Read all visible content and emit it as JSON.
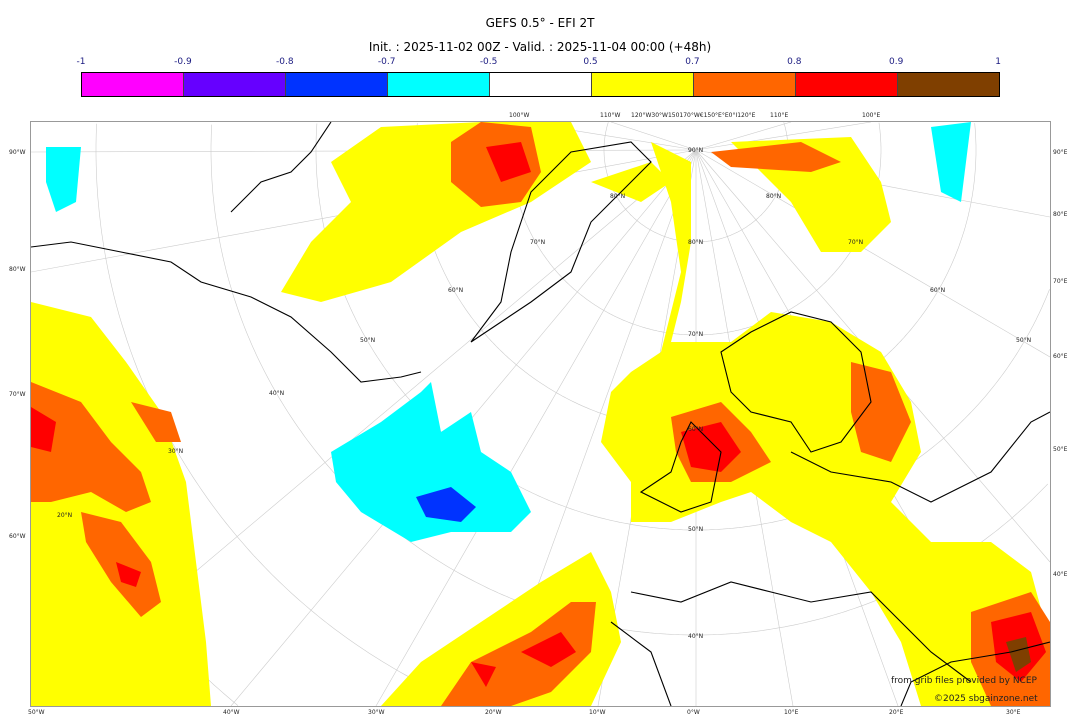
{
  "header": {
    "title": "GEFS 0.5° - EFI 2T",
    "subtitle": "Init. : 2025-11-02 00Z - Valid. : 2025-11-04 00:00 (+48h)"
  },
  "colorbar": {
    "ticks": [
      "-1",
      "-0.9",
      "-0.8",
      "-0.7",
      "-0.5",
      "0.5",
      "0.7",
      "0.8",
      "0.9",
      "1"
    ],
    "colors": [
      "#ff00ff",
      "#6600ff",
      "#0033ff",
      "#00ffff",
      "#ffffff",
      "#ffff00",
      "#ff6600",
      "#ff0000",
      "#7f3f00"
    ]
  },
  "map": {
    "left_labels": [
      "90°W",
      "80°W",
      "70°W",
      "60°W"
    ],
    "right_labels": [
      "90°E",
      "80°E",
      "70°E",
      "60°E",
      "50°E",
      "40°E"
    ],
    "bottom_labels": [
      "50°W",
      "40°W",
      "30°W",
      "20°W",
      "10°W",
      "0°W",
      "10°E",
      "20°E",
      "30°E"
    ],
    "top_labels": [
      "100°W",
      "110°W",
      "120°W30°W150170°W€150°E°E0°I120°E",
      "110°E",
      "100°E"
    ],
    "lat_labels_center": [
      "90°N",
      "80°N",
      "70°N",
      "60°N",
      "50°N",
      "40°N"
    ],
    "lat_labels_left": [
      "80°N",
      "70°N",
      "60°N",
      "50°N",
      "40°N",
      "30°N",
      "20°N"
    ],
    "lat_labels_right": [
      "80°N",
      "70°N",
      "60°N",
      "50°N"
    ]
  },
  "credits": {
    "source": "from grib files provided by NCEP",
    "copyright": "©2025 sbgainzone.net"
  }
}
